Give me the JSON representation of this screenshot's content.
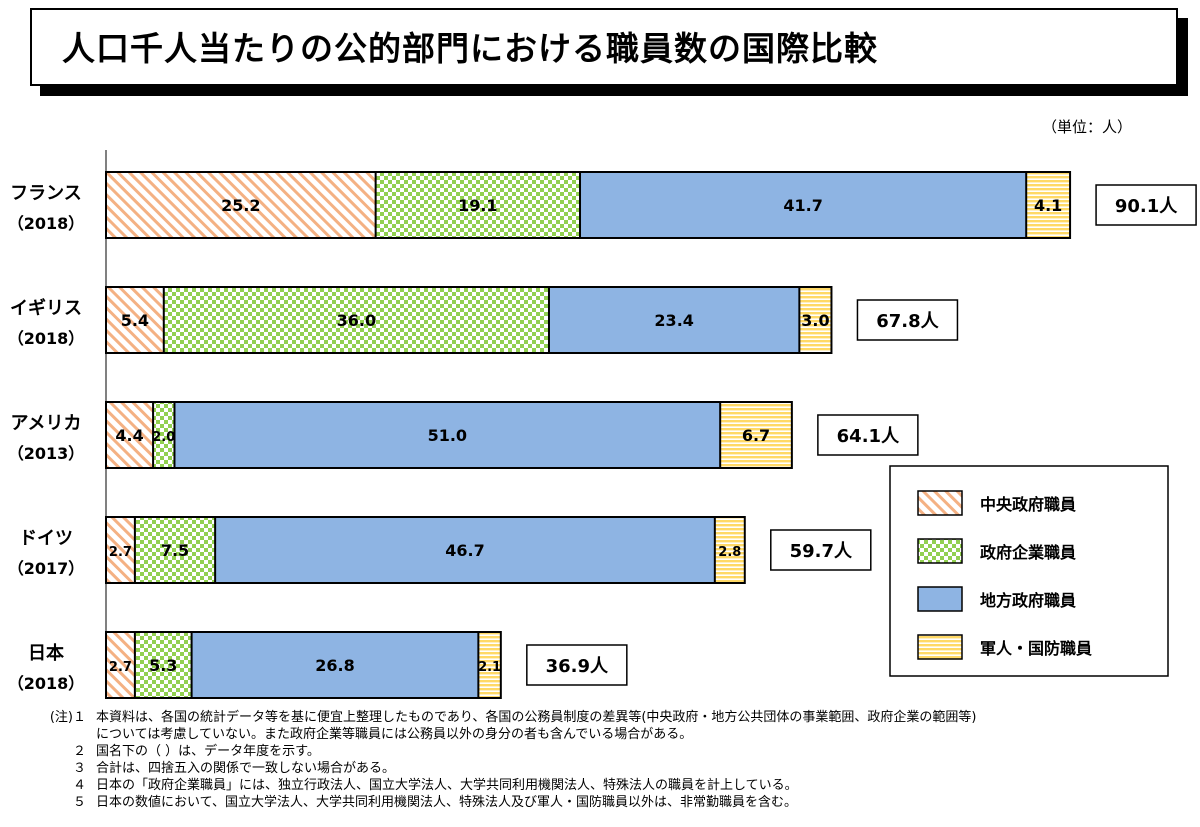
{
  "title": "人口千人当たりの公的部門における職員数の国際比較",
  "unit": "（単位：人）",
  "chart_data": {
    "type": "bar",
    "orientation": "horizontal",
    "stacked": true,
    "categories": [
      {
        "name": "フランス",
        "year": "（2018）"
      },
      {
        "name": "イギリス",
        "year": "（2018）"
      },
      {
        "name": "アメリカ",
        "year": "（2013）"
      },
      {
        "name": "ドイツ",
        "year": "（2017）"
      },
      {
        "name": "日本",
        "year": "（2018）"
      }
    ],
    "series": [
      {
        "name": "中央政府職員",
        "color": "#f4b183",
        "pattern": "diagonal-hatch",
        "values": [
          25.2,
          5.4,
          4.4,
          2.7,
          2.7
        ]
      },
      {
        "name": "政府企業職員",
        "color": "#92d050",
        "pattern": "checker",
        "values": [
          19.1,
          36.0,
          2.0,
          7.5,
          5.3
        ]
      },
      {
        "name": "地方政府職員",
        "color": "#8eb4e3",
        "pattern": "solid",
        "values": [
          41.7,
          23.4,
          51.0,
          46.7,
          26.8
        ]
      },
      {
        "name": "軍人・国防職員",
        "color": "#ffd966",
        "pattern": "horizontal-stripes",
        "values": [
          4.1,
          3.0,
          6.7,
          2.8,
          2.1
        ]
      }
    ],
    "totals": [
      "90.1人",
      "67.8人",
      "64.1人",
      "59.7人",
      "36.9人"
    ],
    "legend_position": "bottom-right",
    "grid": false
  },
  "notes": [
    {
      "num": "(注)１",
      "text": "本資料は、各国の統計データ等を基に便宜上整理したものであり、各国の公務員制度の差異等(中央政府・地方公共団体の事業範囲、政府企業の範囲等)"
    },
    {
      "num": "",
      "text": "については考慮していない。また政府企業等職員には公務員以外の身分の者も含んでいる場合がある。"
    },
    {
      "num": "２",
      "text": "国名下の（ ）は、データ年度を示す。"
    },
    {
      "num": "３",
      "text": "合計は、四捨五入の関係で一致しない場合がある。"
    },
    {
      "num": "４",
      "text": "日本の「政府企業職員」には、独立行政法人、国立大学法人、大学共同利用機関法人、特殊法人の職員を計上している。"
    },
    {
      "num": "５",
      "text": "日本の数値において、国立大学法人、大学共同利用機関法人、特殊法人及び軍人・国防職員以外は、非常勤職員を含む。"
    }
  ]
}
